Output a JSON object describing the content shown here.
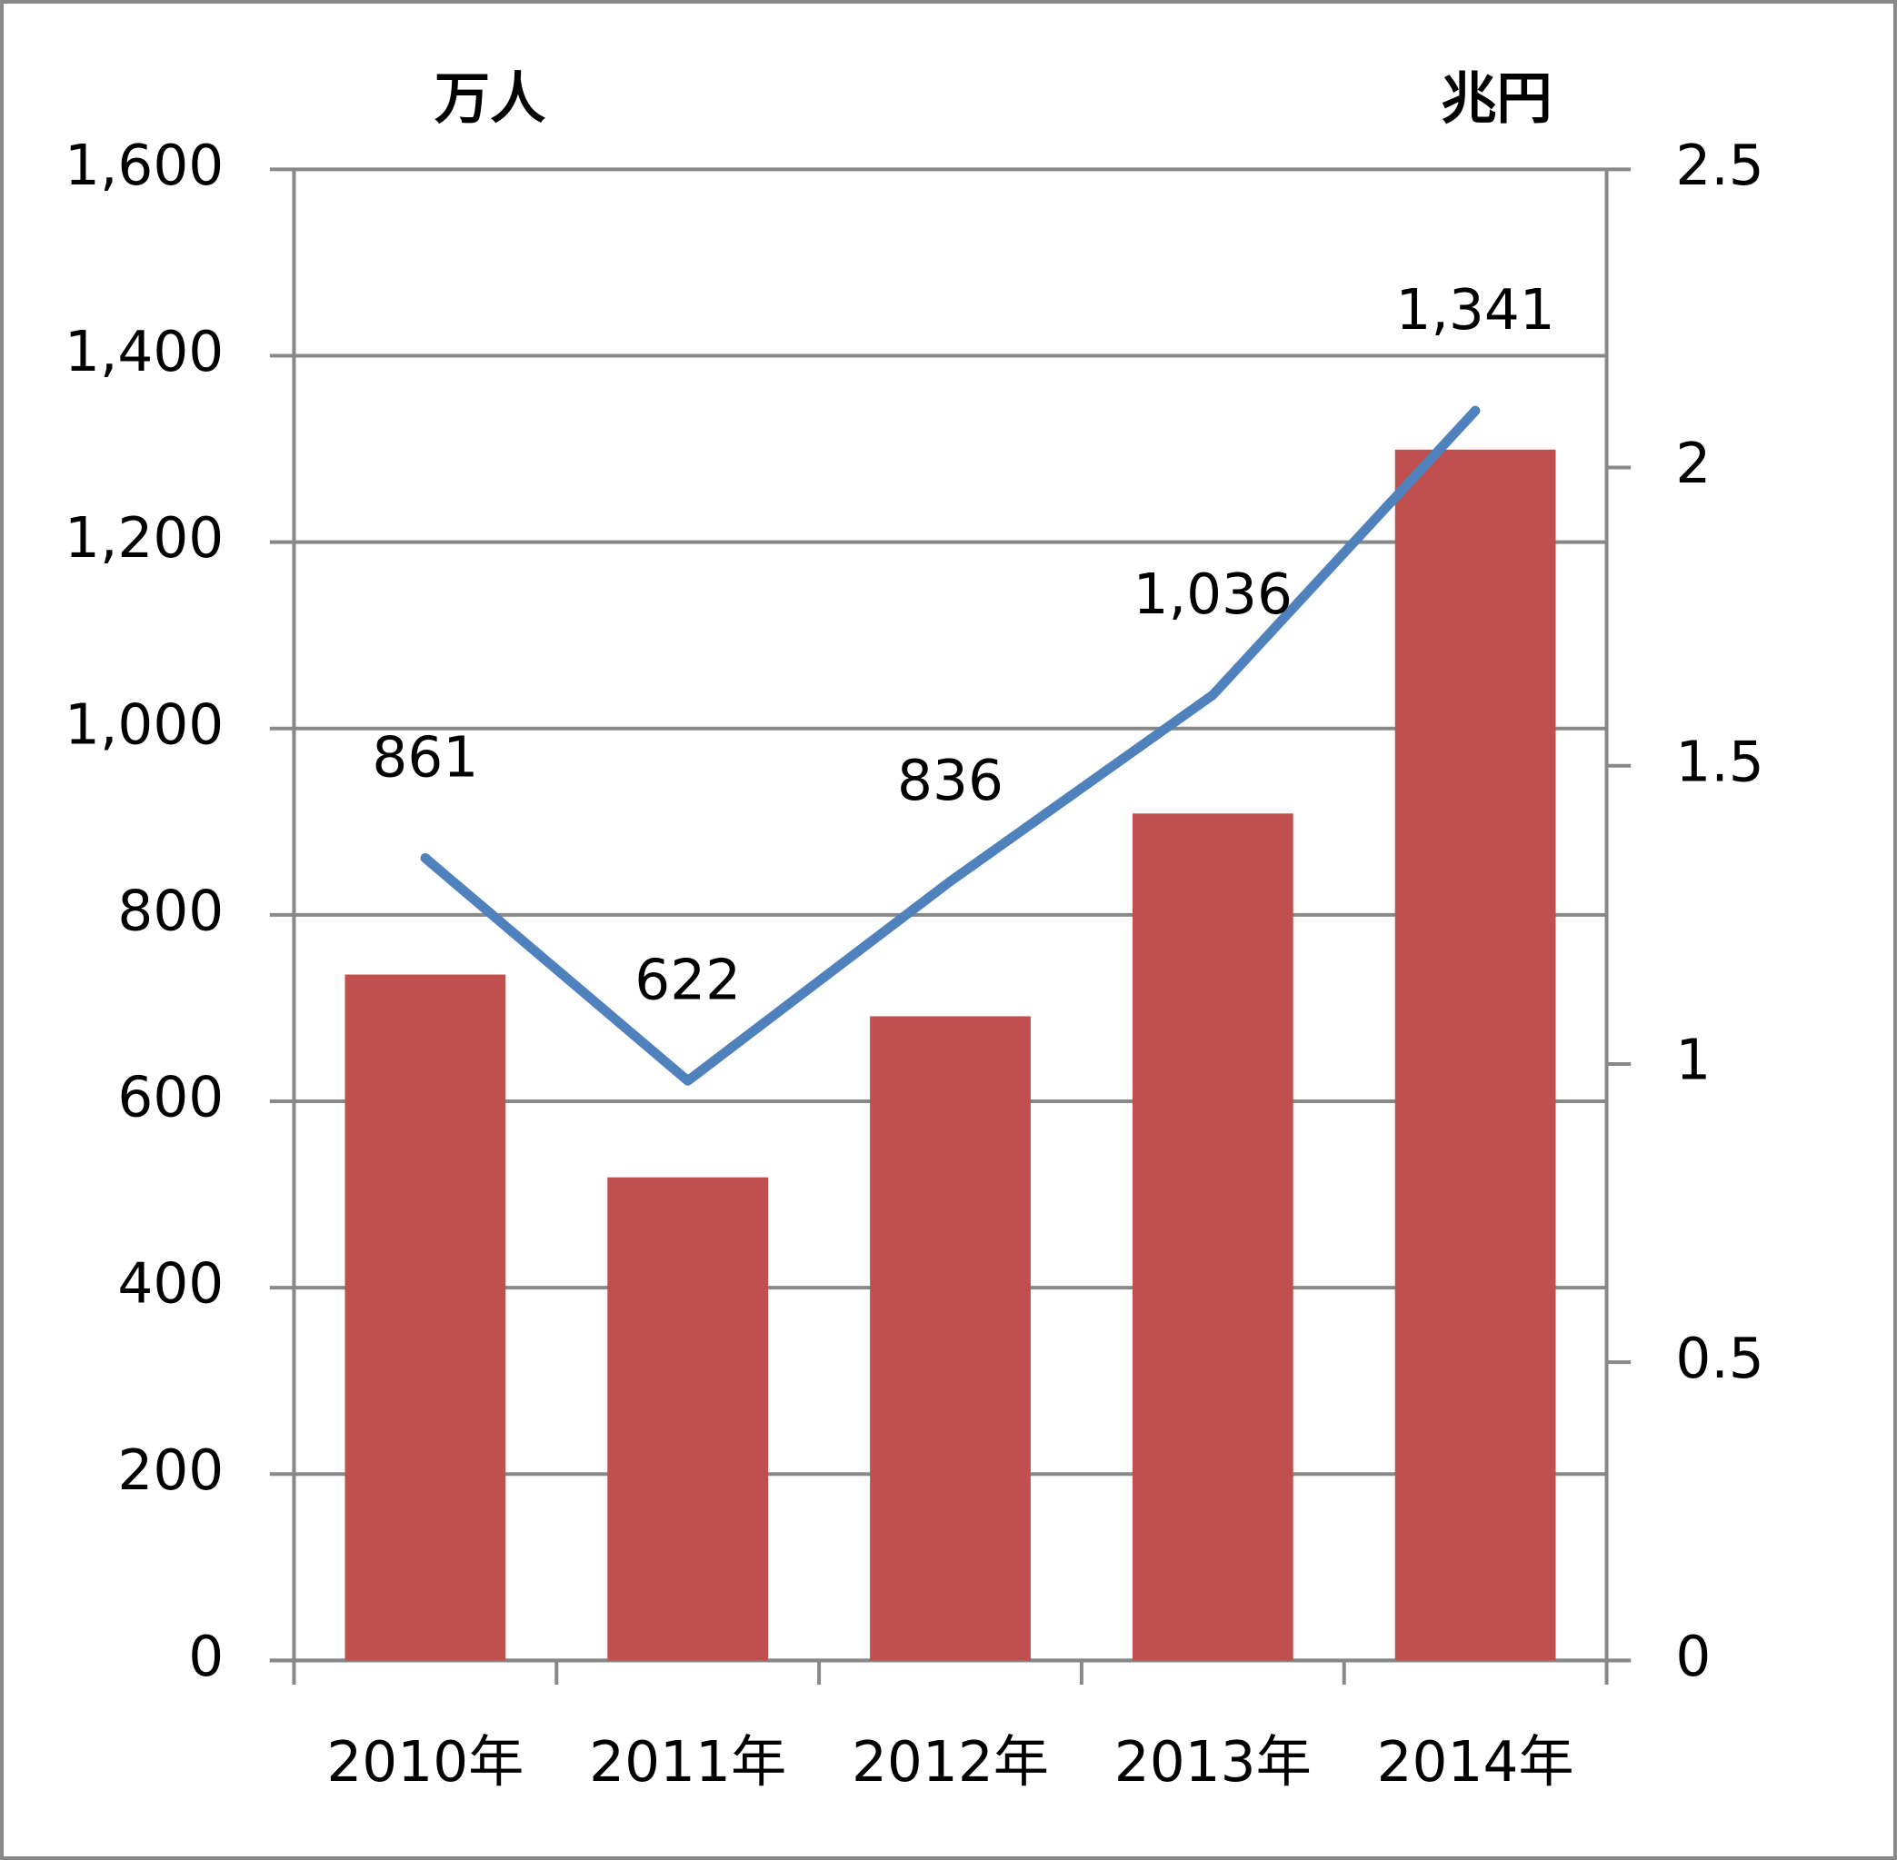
{
  "chart_data": {
    "type": "bar-line",
    "y_title": "万人",
    "y2_title": "兆円",
    "categories": [
      "2010年",
      "2011年",
      "2012年",
      "2013年",
      "2014年"
    ],
    "series": [
      {
        "type": "bar",
        "axis": "y2",
        "color": "#c0504d",
        "values": [
          1.15,
          0.81,
          1.08,
          1.42,
          2.03
        ]
      },
      {
        "type": "line",
        "axis": "y",
        "color": "#4f81bd",
        "values": [
          861,
          622,
          836,
          1036,
          1341
        ],
        "value_labels": [
          "861",
          "622",
          "836",
          "1,036",
          "1,341"
        ]
      }
    ],
    "ylim": [
      0,
      1600
    ],
    "yticks": [
      0,
      200,
      400,
      600,
      800,
      {
        "value": 1000,
        "label": "1,000"
      },
      {
        "value": 1200,
        "label": "1,200"
      },
      {
        "value": 1400,
        "label": "1,400"
      },
      {
        "value": 1600,
        "label": "1,600"
      }
    ],
    "y2lim": [
      0,
      2.5
    ],
    "y2ticks": [
      0,
      0.5,
      1,
      1.5,
      2,
      2.5
    ],
    "grid": true
  }
}
